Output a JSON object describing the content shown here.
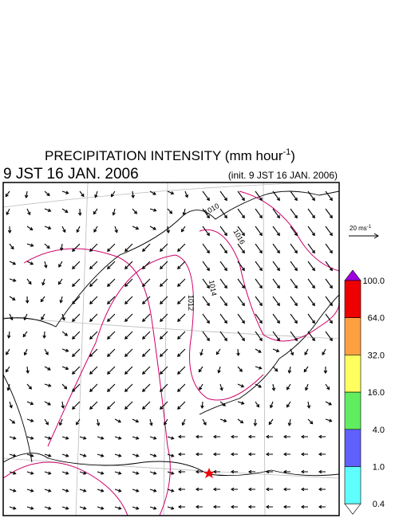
{
  "header": {
    "title": "PRECIPITATION INTENSITY (mm hour",
    "title_exponent": "-1",
    "title_close": ")",
    "valid_time": "9 JST 16 JAN. 2006",
    "init_time": "(init. 9 JST 16 JAN. 2006)"
  },
  "reference_vector": {
    "label": "20 ms",
    "exponent": "-1"
  },
  "contour_labels": [
    "1010",
    "1012",
    "1014",
    "1016"
  ],
  "colorbar": {
    "labels": [
      "100.0",
      "64.0",
      "32.0",
      "16.0",
      "4.0",
      "1.0",
      "0.4"
    ],
    "colors": [
      "#a000e0",
      "#ee0000",
      "#ffa040",
      "#ffff60",
      "#60ee60",
      "#6060ff",
      "#60ffff",
      "#ffffff"
    ]
  }
}
